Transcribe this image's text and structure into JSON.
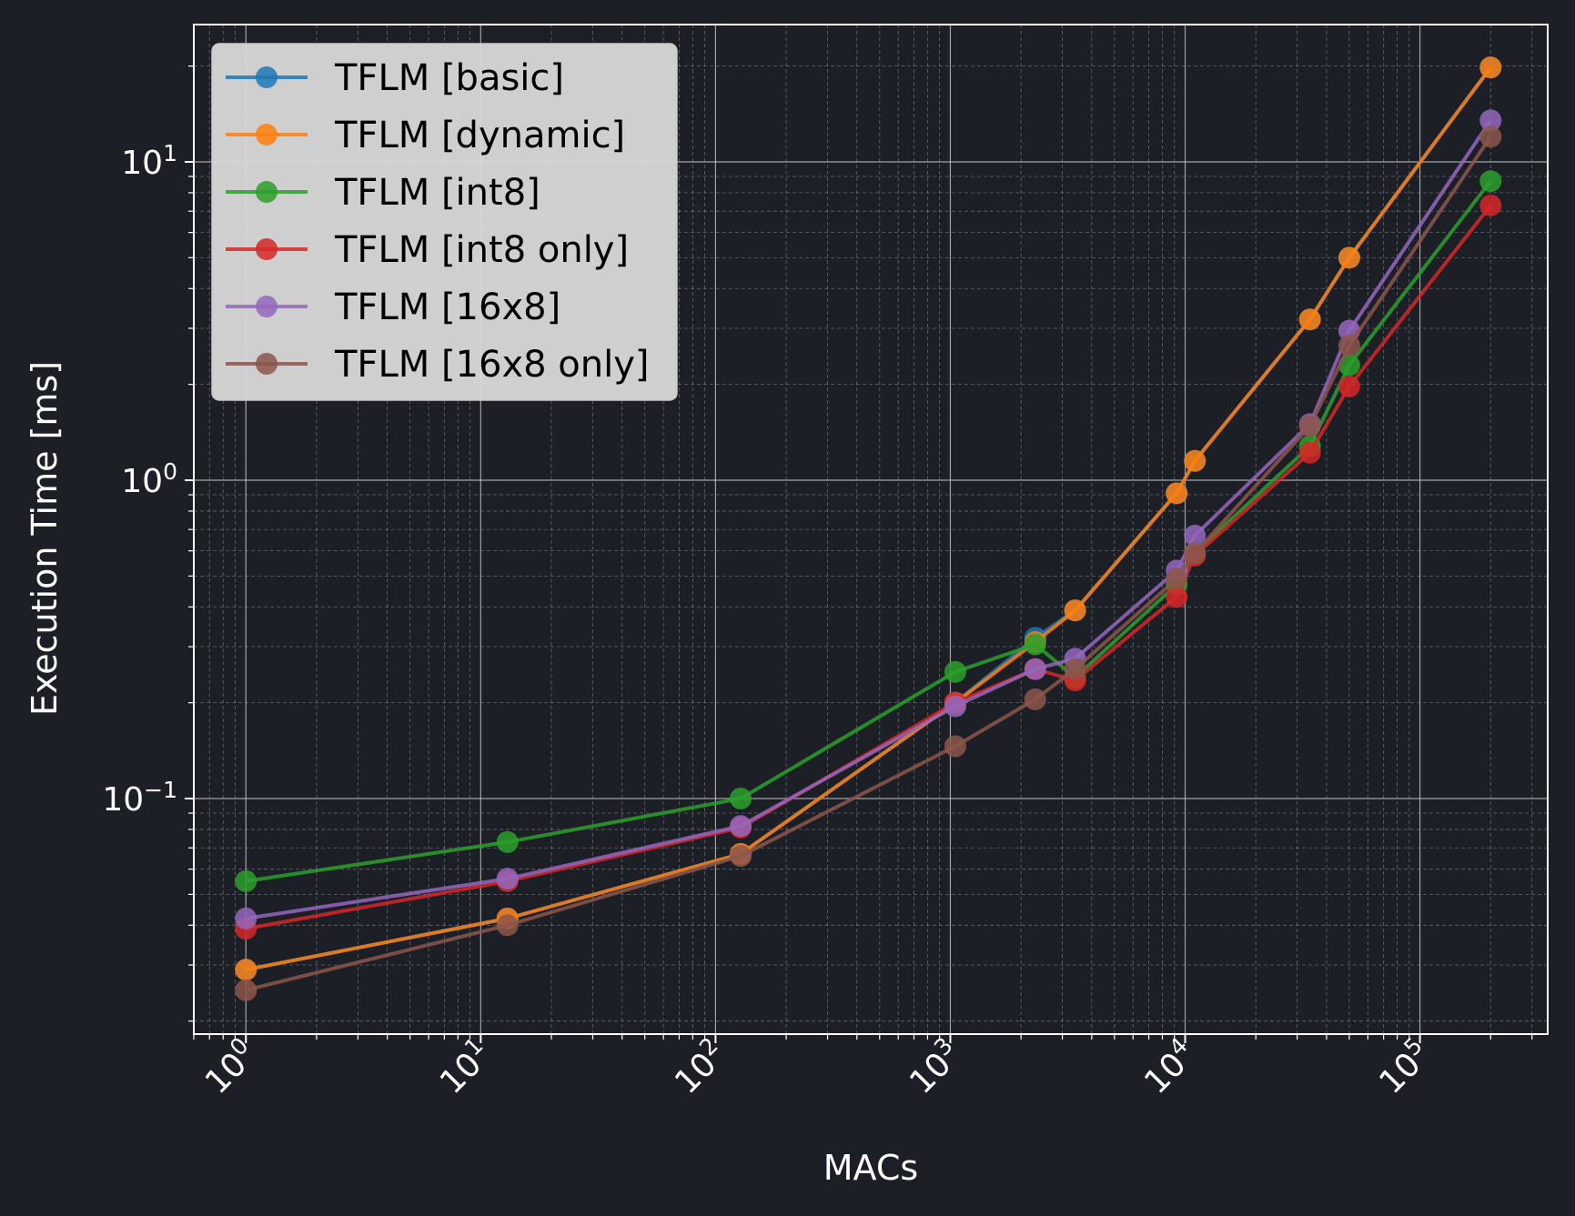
{
  "chart_data": {
    "type": "line",
    "xlabel": "MACs",
    "ylabel": "Execution Time [ms]",
    "xscale": "log",
    "yscale": "log",
    "xlim": [
      0.6,
      350000
    ],
    "ylim": [
      0.0182,
      27
    ],
    "xticks": [
      {
        "base": "10",
        "exp": "0"
      },
      {
        "base": "10",
        "exp": "1"
      },
      {
        "base": "10",
        "exp": "2"
      },
      {
        "base": "10",
        "exp": "3"
      },
      {
        "base": "10",
        "exp": "4"
      },
      {
        "base": "10",
        "exp": "5"
      }
    ],
    "yticks": [
      {
        "base": "10",
        "exp": "−1"
      },
      {
        "base": "10",
        "exp": "0"
      },
      {
        "base": "10",
        "exp": "1"
      }
    ],
    "grid": true,
    "legend_position": "top-left",
    "colors": {
      "background": "#1d1f27",
      "axes_frame": "#ffffff",
      "legend_bg": "#d9d9d9"
    },
    "x": [
      1,
      13,
      128,
      1050,
      2300,
      3400,
      9200,
      11000,
      34000,
      50000,
      200000
    ],
    "series": [
      {
        "name": "TFLM [basic]",
        "color": "#1f77b4",
        "values": [
          0.029,
          0.042,
          0.067,
          0.2,
          0.32,
          0.39,
          0.91,
          1.15,
          3.2,
          5.0,
          19.8
        ]
      },
      {
        "name": "TFLM [dynamic]",
        "color": "#ff7f0e",
        "values": [
          0.029,
          0.042,
          0.067,
          0.2,
          0.31,
          0.39,
          0.91,
          1.15,
          3.2,
          5.0,
          19.8
        ]
      },
      {
        "name": "TFLM [int8]",
        "color": "#2ca02c",
        "values": [
          0.055,
          0.073,
          0.1,
          0.25,
          0.305,
          0.24,
          0.47,
          0.59,
          1.28,
          2.3,
          8.7
        ]
      },
      {
        "name": "TFLM [int8 only]",
        "color": "#d62728",
        "values": [
          0.039,
          0.055,
          0.081,
          0.2,
          0.255,
          0.235,
          0.43,
          0.58,
          1.22,
          1.97,
          7.3
        ]
      },
      {
        "name": "TFLM [16x8]",
        "color": "#9467bd",
        "values": [
          0.042,
          0.056,
          0.082,
          0.195,
          0.255,
          0.275,
          0.52,
          0.67,
          1.5,
          2.95,
          13.5
        ]
      },
      {
        "name": "TFLM [16x8 only]",
        "color": "#8c564b",
        "values": [
          0.025,
          0.04,
          0.066,
          0.146,
          0.205,
          0.255,
          0.49,
          0.59,
          1.48,
          2.65,
          12.0
        ]
      }
    ]
  }
}
